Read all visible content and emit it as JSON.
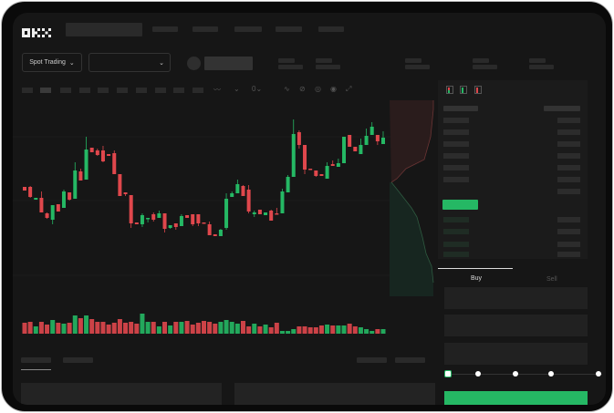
{
  "brand": {
    "logo": "OKX"
  },
  "header": {
    "trade_mode": "Spot Trading"
  },
  "order_form": {
    "tabs": [
      "Buy",
      "Sell"
    ],
    "active_tab": "Buy",
    "leverage_slider_value": 0
  },
  "colors": {
    "up": "#25b864",
    "down": "#e0474c",
    "background": "#161616"
  },
  "chart_data": {
    "type": "candlestick",
    "candles": [
      [
        57,
        53,
        57,
        53
      ],
      [
        57,
        46,
        58,
        45
      ],
      [
        43,
        45,
        45,
        43
      ],
      [
        45,
        29,
        52,
        29
      ],
      [
        28,
        23,
        29,
        22
      ],
      [
        21,
        37,
        37,
        16
      ],
      [
        38,
        30,
        38,
        30
      ],
      [
        34,
        52,
        54,
        34
      ],
      [
        51,
        43,
        51,
        42
      ],
      [
        44,
        75,
        84,
        44
      ],
      [
        74,
        64,
        77,
        64
      ],
      [
        65,
        98,
        112,
        65
      ],
      [
        100,
        95,
        100,
        95
      ],
      [
        97,
        92,
        99,
        91
      ],
      [
        97,
        85,
        102,
        84
      ],
      [
        93,
        91,
        93,
        91
      ],
      [
        94,
        71,
        97,
        71
      ],
      [
        71,
        47,
        71,
        47
      ],
      [
        51,
        49,
        51,
        47
      ],
      [
        48,
        17,
        48,
        12
      ],
      [
        18,
        16,
        18,
        16
      ],
      [
        16,
        26,
        28,
        13
      ],
      [
        22,
        23,
        23,
        18
      ],
      [
        27,
        21,
        29,
        19
      ],
      [
        23,
        28,
        31,
        23
      ],
      [
        28,
        11,
        28,
        7
      ],
      [
        12,
        15,
        15,
        11
      ],
      [
        17,
        13,
        17,
        10
      ],
      [
        14,
        25,
        27,
        14
      ],
      [
        26,
        23,
        26,
        23
      ],
      [
        27,
        16,
        27,
        14
      ],
      [
        27,
        17,
        27,
        14
      ],
      [
        18,
        17,
        18,
        17
      ],
      [
        16,
        4,
        19,
        4
      ],
      [
        5,
        3,
        5,
        3
      ],
      [
        3,
        10,
        11,
        3
      ],
      [
        12,
        44,
        50,
        10
      ],
      [
        46,
        50,
        52,
        46
      ],
      [
        50,
        60,
        65,
        50
      ],
      [
        58,
        47,
        59,
        47
      ],
      [
        54,
        30,
        59,
        28
      ],
      [
        27,
        29,
        31,
        24
      ],
      [
        32,
        27,
        32,
        27
      ],
      [
        26,
        29,
        29,
        26
      ],
      [
        31,
        20,
        32,
        20
      ],
      [
        28,
        27,
        34,
        27
      ],
      [
        28,
        52,
        55,
        28
      ],
      [
        51,
        68,
        70,
        51
      ],
      [
        68,
        115,
        131,
        68
      ],
      [
        117,
        103,
        119,
        99
      ],
      [
        103,
        76,
        103,
        71
      ],
      [
        77,
        76,
        77,
        76
      ],
      [
        75,
        69,
        75,
        68
      ],
      [
        71,
        69,
        71,
        69
      ],
      [
        66,
        80,
        84,
        66
      ],
      [
        82,
        80,
        86,
        80
      ],
      [
        79,
        83,
        88,
        79
      ],
      [
        83,
        112,
        112,
        83
      ],
      [
        114,
        101,
        114,
        101
      ],
      [
        101,
        96,
        101,
        96
      ],
      [
        93,
        103,
        110,
        93
      ],
      [
        103,
        113,
        121,
        103
      ],
      [
        114,
        123,
        128,
        114
      ],
      [
        114,
        107,
        114,
        103
      ],
      [
        104,
        111,
        118,
        104
      ]
    ],
    "volumes": [
      12,
      13,
      8,
      13,
      10,
      15,
      12,
      11,
      12,
      20,
      17,
      20,
      16,
      13,
      13,
      10,
      12,
      16,
      12,
      13,
      11,
      22,
      13,
      13,
      8,
      13,
      9,
      13,
      13,
      14,
      10,
      12,
      14,
      13,
      11,
      13,
      15,
      13,
      11,
      14,
      8,
      11,
      8,
      10,
      7,
      12,
      3,
      3,
      5,
      8,
      8,
      7,
      7,
      9,
      10,
      9,
      9,
      9,
      11,
      8,
      7,
      5,
      3,
      5,
      5
    ]
  }
}
